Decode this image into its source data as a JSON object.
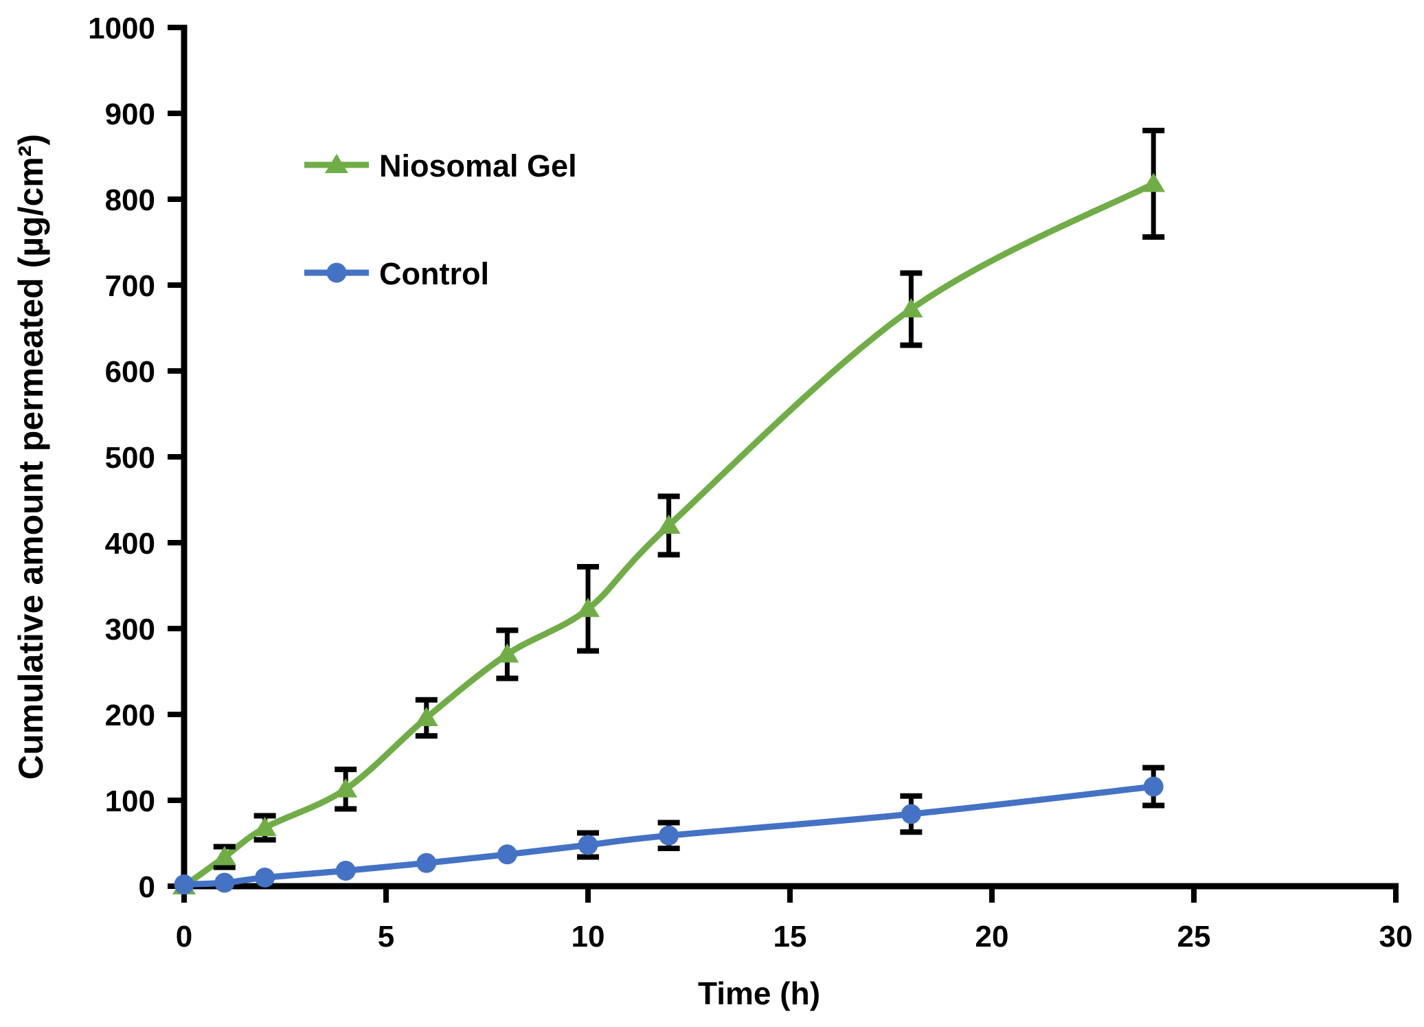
{
  "figure": {
    "background": "#ffffff",
    "title": ""
  },
  "styles": {
    "axis_color": "#000000",
    "text_color": "#000000",
    "error_bar_color": "#000000",
    "niosomal_green": "#70AD47",
    "control_blue": "#4472C4"
  },
  "chart_data": {
    "type": "line",
    "title": "",
    "xlabel": "Time (h)",
    "ylabel": "Cumulative amount permeated (µg/cm²)",
    "xlim": [
      0,
      30
    ],
    "ylim": [
      0,
      1000
    ],
    "xticks": [
      0,
      5,
      10,
      15,
      20,
      25,
      30
    ],
    "yticks": [
      0,
      100,
      200,
      300,
      400,
      500,
      600,
      700,
      800,
      900,
      1000
    ],
    "grid": false,
    "legend_position": "inside-top-left",
    "x": [
      0,
      1,
      2,
      4,
      6,
      8,
      10,
      12,
      18,
      24
    ],
    "series": [
      {
        "name": "Niosomal Gel",
        "color": "#70AD47",
        "marker": "triangle",
        "line_style": "smooth",
        "values": [
          0,
          34,
          68,
          113,
          196,
          270,
          323,
          420,
          672,
          818
        ],
        "errors": [
          0,
          12,
          14,
          23,
          21,
          28,
          49,
          34,
          42,
          62
        ]
      },
      {
        "name": "Control",
        "color": "#4472C4",
        "marker": "circle",
        "line_style": "smooth",
        "values": [
          2,
          4,
          10,
          18,
          27,
          37,
          48,
          59,
          84,
          116
        ],
        "errors": [
          0,
          0,
          0,
          0,
          0,
          0,
          14,
          15,
          21,
          22
        ]
      }
    ]
  }
}
